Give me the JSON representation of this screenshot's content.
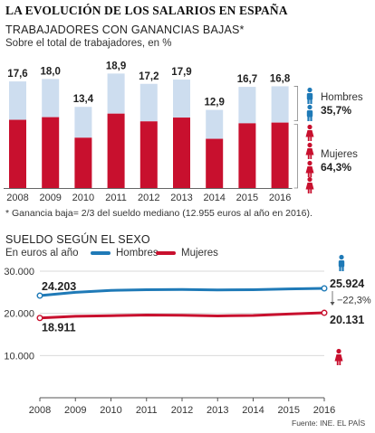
{
  "header": {
    "title": "LA EVOLUCIÓN DE LOS SALARIOS EN ESPAÑA"
  },
  "colors": {
    "low_wage": "#c8102e",
    "high_wage": "#cdddef",
    "hombres": "#1f7ab7",
    "mujeres": "#c8102e",
    "axis": "#555555",
    "grid": "#d9d9d9"
  },
  "chart_data": [
    {
      "type": "bar",
      "title": "TRABAJADORES CON GANANCIAS BAJAS*",
      "subtitle": "Sobre el total de trabajadores, en %",
      "categories": [
        "2008",
        "2009",
        "2010",
        "2011",
        "2012",
        "2013",
        "2014",
        "2015",
        "2016"
      ],
      "values": [
        17.6,
        18.0,
        13.4,
        18.9,
        17.2,
        17.9,
        12.9,
        16.7,
        16.8
      ],
      "value_labels": [
        "17,6",
        "18,0",
        "13,4",
        "18,9",
        "17,2",
        "17,9",
        "12,9",
        "16,7",
        "16,8"
      ],
      "red_share": [
        0.64,
        0.65,
        0.62,
        0.65,
        0.64,
        0.65,
        0.63,
        0.64,
        0.643
      ],
      "ylim": [
        0,
        20
      ],
      "annotations": {
        "hombres_label": "Hombres",
        "hombres_value": "35,7%",
        "mujeres_label": "Mujeres",
        "mujeres_value": "64,3%"
      },
      "note": "* Ganancia baja= 2/3 del sueldo mediano (12.955 euros al año en 2016)."
    },
    {
      "type": "line",
      "title": "SUELDO SEGÚN EL SEXO",
      "subtitle": "En euros al año",
      "x": [
        "2008",
        "2009",
        "2010",
        "2011",
        "2012",
        "2013",
        "2014",
        "2015",
        "2016"
      ],
      "series": [
        {
          "name": "Hombres",
          "values": [
            24203,
            25000,
            25450,
            25600,
            25650,
            25550,
            25600,
            25800,
            25924
          ]
        },
        {
          "name": "Mujeres",
          "values": [
            18911,
            19300,
            19450,
            19600,
            19550,
            19400,
            19500,
            19850,
            20131
          ]
        }
      ],
      "yticks": [
        10000,
        20000,
        30000
      ],
      "ytick_labels": [
        "10.000",
        "20.000",
        "30.000"
      ],
      "ylim": [
        0,
        30000
      ],
      "grid": true,
      "legend": "top-left",
      "annotations": {
        "hombres_start": "24.203",
        "mujeres_start": "18.911",
        "hombres_end": "25.924",
        "mujeres_end": "20.131",
        "gap": "−22,3%"
      }
    }
  ],
  "footer": {
    "source": "Fuente: INE.",
    "publisher": "EL PAÍS"
  }
}
